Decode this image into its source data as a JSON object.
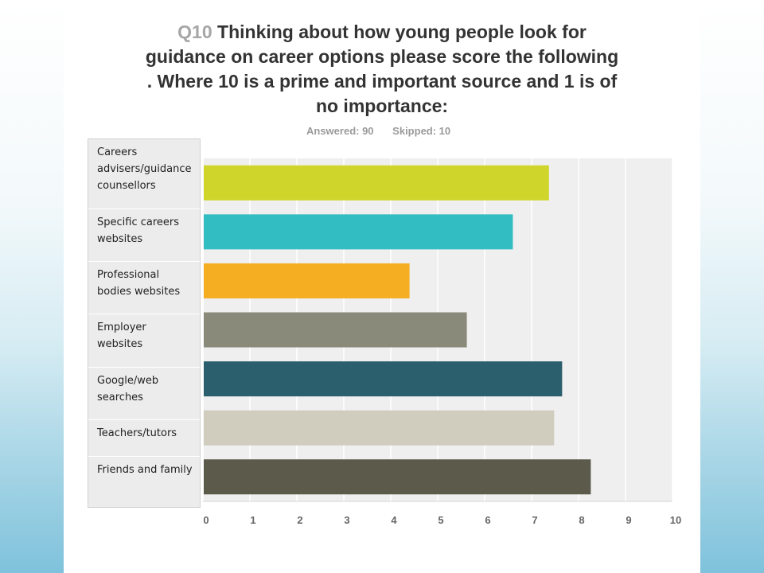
{
  "title": {
    "qnum": "Q10",
    "text": "Thinking about how young people look for guidance on career options please score the following . Where 10 is a prime and important source and 1 is of no importance:"
  },
  "stats": {
    "answered": "Answered: 90",
    "skipped": "Skipped: 10"
  },
  "chart_data": {
    "type": "bar",
    "orientation": "horizontal",
    "categories": [
      "Careers advisers/guidance counsellors",
      "Specific careers websites",
      "Professional bodies websites",
      "Employer websites",
      "Google/web searches",
      "Teachers/tutors",
      "Friends and family"
    ],
    "values": [
      7.37,
      6.6,
      4.4,
      5.62,
      7.65,
      7.48,
      8.26
    ],
    "colors": [
      "#cfd52a",
      "#31bdc1",
      "#f5ae21",
      "#8a8a7a",
      "#2c5f6d",
      "#d0cdbf",
      "#5c5a4a"
    ],
    "xlim": [
      0,
      10
    ],
    "x_ticks": [
      "0",
      "1",
      "2",
      "3",
      "4",
      "5",
      "6",
      "7",
      "8",
      "9",
      "10"
    ],
    "grid": true,
    "xlabel": "",
    "ylabel": ""
  }
}
